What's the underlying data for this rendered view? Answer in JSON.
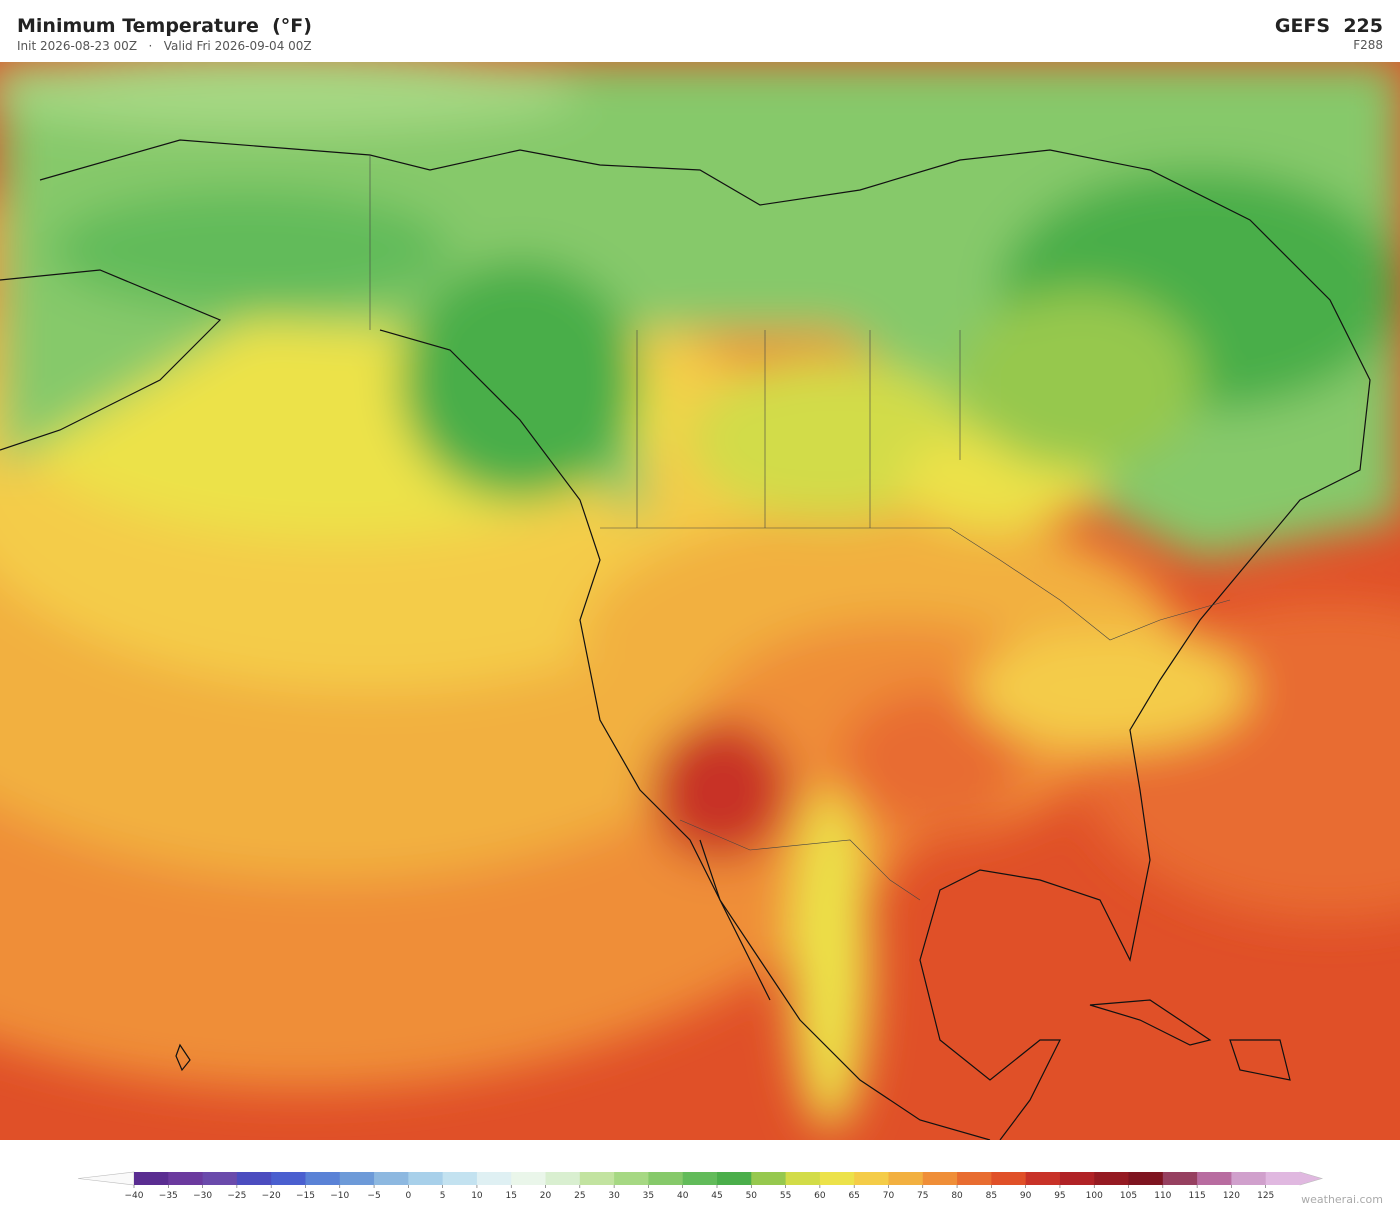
{
  "header": {
    "title": "Minimum Temperature  (°F)",
    "subtitle": "Init 2026-08-23 00Z   ·   Valid Fri 2026-09-04 00Z",
    "model": "GEFS  225",
    "forecast_hour": "F288"
  },
  "colorbar": {
    "ticks": [
      {
        "value": -40,
        "label": "−40"
      },
      {
        "value": -35,
        "label": "−35"
      },
      {
        "value": -30,
        "label": "−30"
      },
      {
        "value": -25,
        "label": "−25"
      },
      {
        "value": -20,
        "label": "−20"
      },
      {
        "value": -15,
        "label": "−15"
      },
      {
        "value": -10,
        "label": "−10"
      },
      {
        "value": -5,
        "label": "−5"
      },
      0,
      5,
      10,
      15,
      20,
      25,
      30,
      35,
      40,
      45,
      50,
      55,
      60,
      65,
      70,
      75,
      80,
      85,
      90,
      95,
      100,
      105,
      110,
      115,
      120,
      125
    ],
    "colors": [
      "#5a2d91",
      "#6b3a9e",
      "#6a4aab",
      "#4b4cbf",
      "#4a5fcf",
      "#5a82d6",
      "#6d9ad8",
      "#8db8e0",
      "#a8d0ea",
      "#c3e2f0",
      "#dff0f3",
      "#eaf6ea",
      "#d9efd0",
      "#c2e3a0",
      "#a6d883",
      "#86c96a",
      "#62bb5a",
      "#4aae4a",
      "#96c84e",
      "#d2dc48",
      "#ece24a",
      "#f4cc48",
      "#f2b040",
      "#ef8e38",
      "#e86c30",
      "#e05028",
      "#c83228",
      "#b02226",
      "#951a22",
      "#7e1420",
      "#964060",
      "#b86ca0",
      "#d0a0cc",
      "#e0b8e0"
    ]
  },
  "watermark": "weatherai.com"
}
